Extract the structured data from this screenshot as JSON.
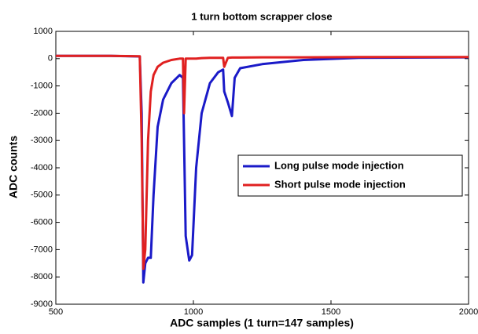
{
  "chart_data": {
    "type": "line",
    "title": "1 turn bottom scrapper close",
    "xlabel": "ADC samples (1 turn=147 samples)",
    "ylabel": "ADC counts",
    "xlim": [
      500,
      2000
    ],
    "xticks": [
      500,
      1000,
      1500,
      2000
    ],
    "ylim": [
      -9000,
      1000
    ],
    "yticks": [
      1000,
      0,
      -1000,
      -2000,
      -3000,
      -4000,
      -5000,
      -6000,
      -7000,
      -8000,
      -9000
    ],
    "legend": "right",
    "x": [
      500,
      700,
      805,
      812,
      818,
      825,
      835,
      845,
      855,
      870,
      890,
      920,
      950,
      962,
      966,
      972,
      985,
      995,
      1010,
      1030,
      1060,
      1090,
      1108,
      1112,
      1125,
      1140,
      1150,
      1170,
      1250,
      1400,
      1600,
      2000
    ],
    "series": [
      {
        "name": "Long pulse mode injection",
        "color": "#1a1ac8",
        "values": [
          100,
          100,
          80,
          -2000,
          -8200,
          -7500,
          -7300,
          -7300,
          -5000,
          -2500,
          -1500,
          -900,
          -600,
          -700,
          -3000,
          -6500,
          -7400,
          -7200,
          -4000,
          -2000,
          -900,
          -500,
          -400,
          -1200,
          -1600,
          -2100,
          -700,
          -350,
          -200,
          -50,
          30,
          50
        ]
      },
      {
        "name": "Short pulse mode injection",
        "color": "#e02020",
        "values": [
          100,
          100,
          90,
          -3000,
          -7700,
          -7000,
          -3000,
          -1200,
          -600,
          -300,
          -150,
          -50,
          0,
          0,
          -2000,
          0,
          0,
          0,
          0,
          20,
          30,
          30,
          30,
          -300,
          30,
          40,
          40,
          40,
          50,
          50,
          60,
          60
        ]
      }
    ]
  }
}
